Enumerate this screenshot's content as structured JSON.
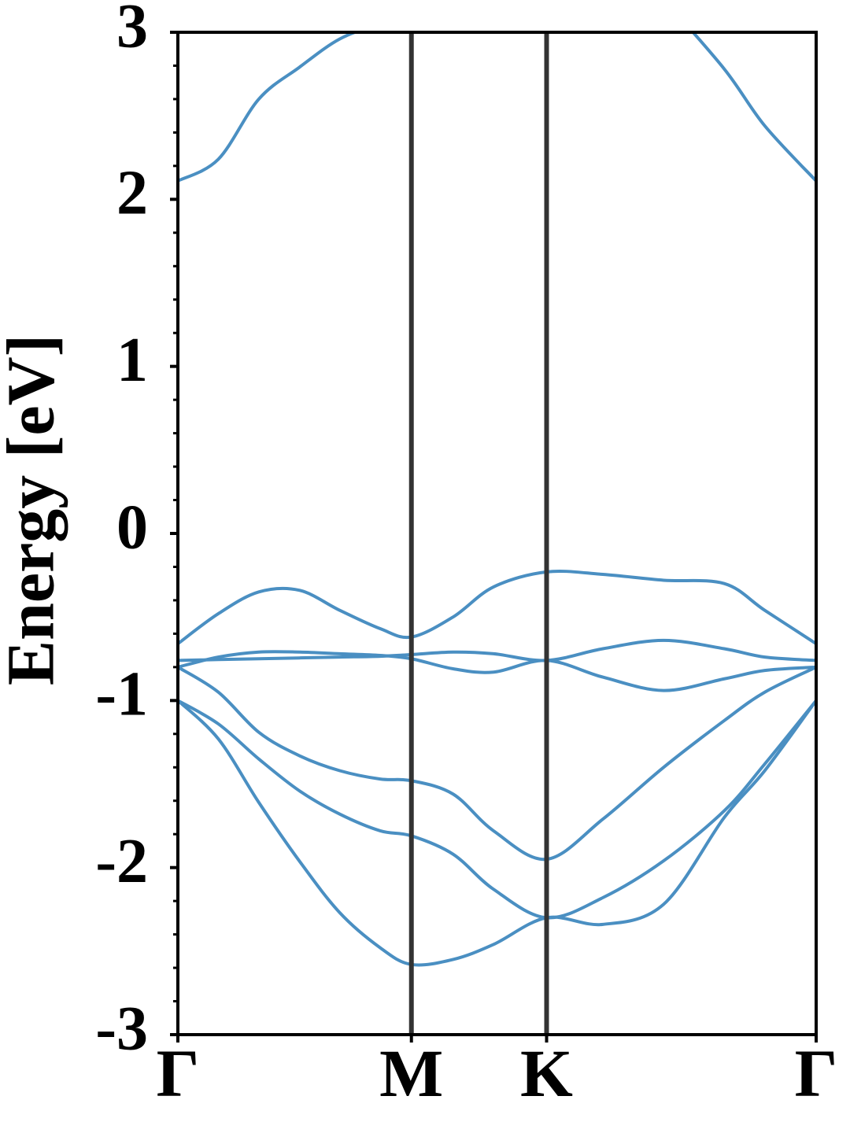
{
  "chart_data": {
    "type": "line",
    "ylabel": "Energy [eV]",
    "x": [
      0,
      0.1,
      0.2,
      0.3,
      0.4,
      0.5,
      0.577,
      0.68,
      0.78,
      0.911,
      1.05,
      1.2,
      1.35,
      1.45,
      1.577
    ],
    "xlim": [
      0,
      1.577
    ],
    "xticks": [
      {
        "value": 0,
        "label": "Γ"
      },
      {
        "value": 0.577,
        "label": "M"
      },
      {
        "value": 0.911,
        "label": "K"
      },
      {
        "value": 1.577,
        "label": "Γ"
      }
    ],
    "ylim": [
      -3,
      3
    ],
    "yticks": [
      -3,
      -2,
      -1,
      0,
      1,
      2,
      3
    ],
    "yminorticks": [
      -2.8,
      -2.6,
      -2.4,
      -2.2,
      -1.8,
      -1.6,
      -1.4,
      -1.2,
      -0.8,
      -0.6,
      -0.4,
      -0.2,
      0.2,
      0.4,
      0.6,
      0.8,
      1.2,
      1.4,
      1.6,
      1.8,
      2.2,
      2.4,
      2.6,
      2.8
    ],
    "vlines": [
      0.577,
      0.911
    ],
    "vline_color": "#333333",
    "series": [
      {
        "color": "#4a8fc2",
        "values": [
          2.11,
          2.24,
          2.6,
          2.79,
          2.96,
          3.05,
          3.1,
          null,
          null,
          null,
          null,
          3.2,
          2.78,
          2.44,
          2.11
        ]
      },
      {
        "color": "#4a8fc2",
        "values": [
          -0.66,
          -0.48,
          -0.35,
          -0.34,
          -0.46,
          -0.57,
          -0.62,
          -0.5,
          -0.32,
          -0.23,
          -0.245,
          -0.28,
          -0.3,
          -0.46,
          -0.66
        ]
      },
      {
        "color": "#4a8fc2",
        "values": [
          -0.76,
          -0.755,
          -0.75,
          -0.745,
          -0.74,
          -0.735,
          -0.725,
          -0.71,
          -0.72,
          -0.76,
          -0.69,
          -0.64,
          -0.69,
          -0.74,
          -0.76
        ]
      },
      {
        "color": "#4a8fc2",
        "values": [
          -0.8,
          -0.74,
          -0.71,
          -0.71,
          -0.72,
          -0.73,
          -0.75,
          -0.81,
          -0.83,
          -0.76,
          -0.86,
          -0.94,
          -0.87,
          -0.82,
          -0.8
        ]
      },
      {
        "color": "#4a8fc2",
        "values": [
          -0.8,
          -0.95,
          -1.19,
          -1.33,
          -1.42,
          -1.47,
          -1.48,
          -1.56,
          -1.78,
          -1.95,
          -1.71,
          -1.4,
          -1.12,
          -0.95,
          -0.8
        ]
      },
      {
        "color": "#4a8fc2",
        "values": [
          -1.0,
          -1.14,
          -1.35,
          -1.54,
          -1.68,
          -1.78,
          -1.81,
          -1.92,
          -2.13,
          -2.3,
          -2.18,
          -1.96,
          -1.66,
          -1.38,
          -1.0
        ]
      },
      {
        "color": "#4a8fc2",
        "values": [
          -1.0,
          -1.23,
          -1.61,
          -1.96,
          -2.27,
          -2.48,
          -2.58,
          -2.55,
          -2.46,
          -2.3,
          -2.34,
          -2.22,
          -1.7,
          -1.42,
          -1.0
        ]
      }
    ]
  }
}
